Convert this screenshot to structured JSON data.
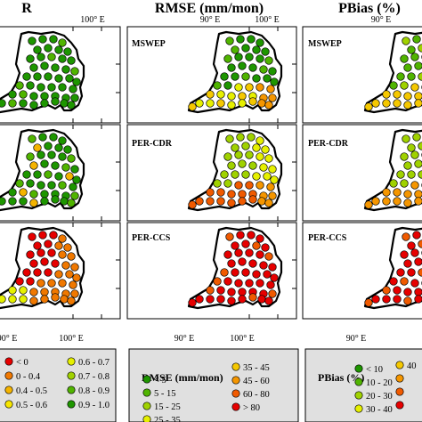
{
  "columns": [
    {
      "key": "r",
      "title": "R"
    },
    {
      "key": "rmse",
      "title": "RMSE (mm/mon)"
    },
    {
      "key": "pbias",
      "title": "PBias (%)"
    }
  ],
  "rows": [
    {
      "key": "mswep",
      "label": "MSWEP"
    },
    {
      "key": "percdr",
      "label": "PER-CDR"
    },
    {
      "key": "perccs",
      "label": "PER-CCS"
    }
  ],
  "ticks": {
    "lon1": "90° E",
    "lon2": "100° E"
  },
  "legends": {
    "r": {
      "title": "",
      "items": [
        {
          "label": "< 0",
          "color": "#e60000"
        },
        {
          "label": "0 - 0.4",
          "color": "#f07800"
        },
        {
          "label": "0.4 - 0.5",
          "color": "#f5b400"
        },
        {
          "label": "0.5 - 0.6",
          "color": "#f7e600"
        },
        {
          "label": "0.6 - 0.7",
          "color": "#e6f000"
        },
        {
          "label": "0.7 - 0.8",
          "color": "#a0d200"
        },
        {
          "label": "0.8 - 0.9",
          "color": "#50b400"
        },
        {
          "label": "0.9 - 1.0",
          "color": "#1e9600"
        }
      ]
    },
    "rmse": {
      "title": "RMSE (mm/mon)",
      "items": [
        {
          "label": "< 5",
          "color": "#1e9600"
        },
        {
          "label": "5 - 15",
          "color": "#50b400"
        },
        {
          "label": "15 - 25",
          "color": "#a0d200"
        },
        {
          "label": "25 - 35",
          "color": "#e6f000"
        },
        {
          "label": "35 - 45",
          "color": "#f5c800"
        },
        {
          "label": "45 - 60",
          "color": "#f59600"
        },
        {
          "label": "60 - 80",
          "color": "#f05a00"
        },
        {
          "label": "> 80",
          "color": "#e60000"
        }
      ]
    },
    "pbias": {
      "title": "PBias (%)",
      "items": [
        {
          "label": "< 10",
          "color": "#1e9600"
        },
        {
          "label": "10 - 20",
          "color": "#50b400"
        },
        {
          "label": "20 - 30",
          "color": "#a0d200"
        },
        {
          "label": "30 - 40",
          "color": "#e6f000"
        },
        {
          "label": "40",
          "color": "#f5c800"
        },
        {
          "label": "",
          "color": "#f59600"
        },
        {
          "label": "",
          "color": "#f05a00"
        },
        {
          "label": "",
          "color": "#e60000"
        }
      ]
    }
  },
  "colors": {
    "panel_border": "#000000",
    "legend_bg": "#e0e0e0",
    "basin_outline": "#000000",
    "grid_tick": "#000000"
  }
}
